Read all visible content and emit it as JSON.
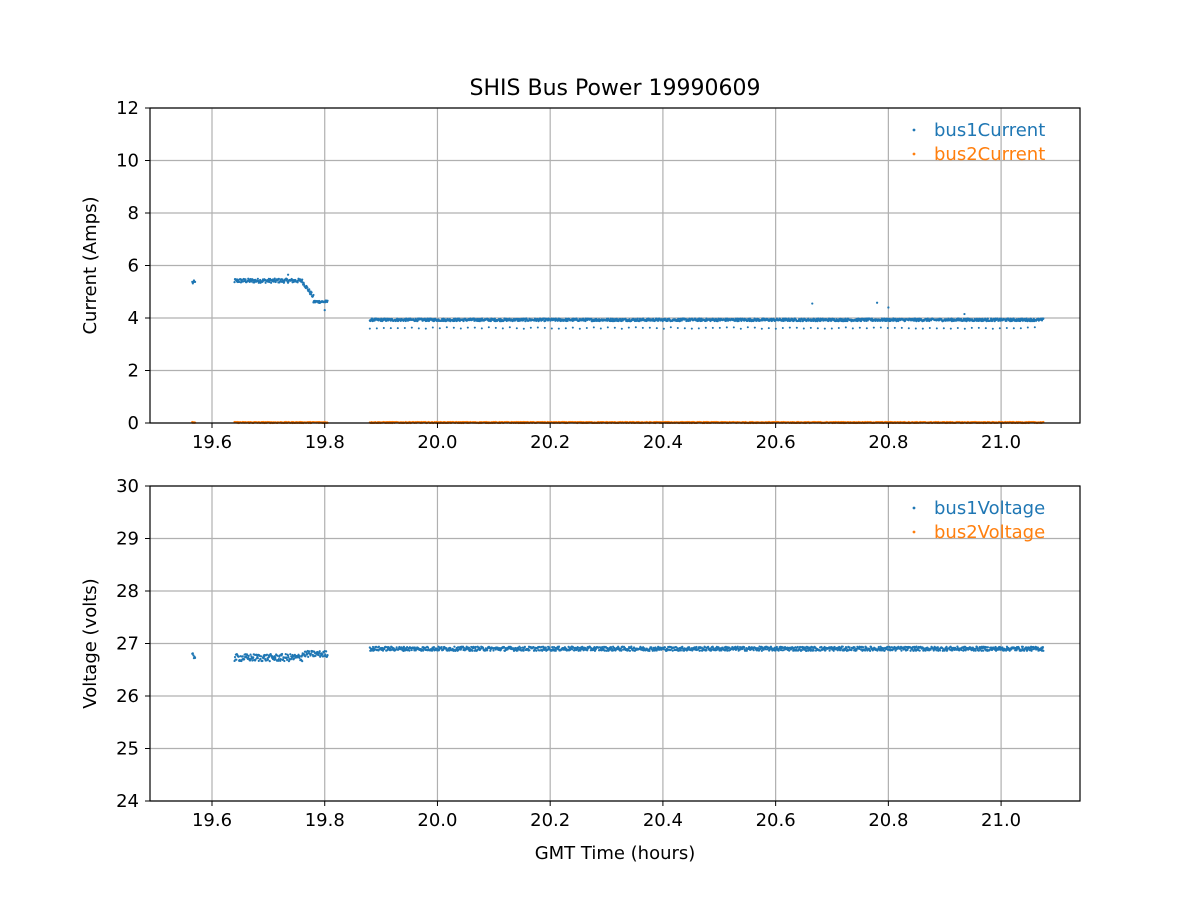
{
  "colors": {
    "series1": "#1f77b4",
    "series2": "#ff7f0e",
    "grid": "#b0b0b0",
    "axes": "#000000",
    "background": "#ffffff"
  },
  "chart_data": [
    {
      "type": "scatter",
      "title": "SHIS Bus Power 19990609",
      "xlabel": "",
      "ylabel": "Current (Amps)",
      "xlim": [
        19.49,
        21.14
      ],
      "ylim": [
        0,
        12
      ],
      "xticks": [
        "19.6",
        "19.8",
        "20.0",
        "20.2",
        "20.4",
        "20.6",
        "20.8",
        "21.0"
      ],
      "yticks": [
        "0",
        "2",
        "4",
        "6",
        "8",
        "10",
        "12"
      ],
      "grid": true,
      "legend_position": "top-right",
      "series": [
        {
          "name": "bus1Current",
          "color": "#1f77b4",
          "segments": [
            {
              "x": [
                19.565,
                19.57
              ],
              "y": 5.35,
              "spread": 0.08
            },
            {
              "x": [
                19.64,
                19.76
              ],
              "y": 5.42,
              "spread": 0.08
            },
            {
              "x": [
                19.76,
                19.78
              ],
              "y_start": 5.4,
              "y_end": 4.8,
              "spread": 0.08
            },
            {
              "x": [
                19.78,
                19.805
              ],
              "y": 4.62,
              "spread": 0.05
            },
            {
              "x": [
                19.88,
                21.075
              ],
              "y": 3.93,
              "spread": 0.05
            }
          ],
          "outliers": [
            {
              "x": [
                19.88,
                21.07
              ],
              "y": 3.62,
              "note": "sparse low band"
            },
            {
              "x": 19.735,
              "y": 5.65
            },
            {
              "x": 19.8,
              "y": 4.3
            },
            {
              "x": 20.665,
              "y": 4.55
            },
            {
              "x": 20.78,
              "y": 4.58
            },
            {
              "x": 20.8,
              "y": 4.4
            },
            {
              "x": 20.935,
              "y": 4.15
            }
          ]
        },
        {
          "name": "bus2Current",
          "color": "#ff7f0e",
          "segments": [
            {
              "x": [
                19.565,
                19.57
              ],
              "y": 0.02,
              "spread": 0.02
            },
            {
              "x": [
                19.64,
                19.805
              ],
              "y": 0.02,
              "spread": 0.02
            },
            {
              "x": [
                19.88,
                21.075
              ],
              "y": 0.02,
              "spread": 0.02
            }
          ]
        }
      ]
    },
    {
      "type": "scatter",
      "title": "",
      "xlabel": "GMT Time (hours)",
      "ylabel": "Voltage (volts)",
      "xlim": [
        19.49,
        21.14
      ],
      "ylim": [
        24,
        30
      ],
      "xticks": [
        "19.6",
        "19.8",
        "20.0",
        "20.2",
        "20.4",
        "20.6",
        "20.8",
        "21.0"
      ],
      "yticks": [
        "24",
        "25",
        "26",
        "27",
        "28",
        "29",
        "30"
      ],
      "grid": true,
      "legend_position": "top-right",
      "series": [
        {
          "name": "bus1Voltage",
          "color": "#1f77b4",
          "segments": [
            {
              "x": [
                19.565,
                19.57
              ],
              "y": 26.76,
              "spread": 0.06
            },
            {
              "x": [
                19.64,
                19.76
              ],
              "y": 26.73,
              "spread": 0.07
            },
            {
              "x": [
                19.76,
                19.805
              ],
              "y": 26.8,
              "spread": 0.06
            },
            {
              "x": [
                19.88,
                21.075
              ],
              "y": 26.9,
              "spread": 0.04
            }
          ]
        },
        {
          "name": "bus2Voltage",
          "color": "#ff7f0e",
          "segments": []
        }
      ]
    }
  ]
}
